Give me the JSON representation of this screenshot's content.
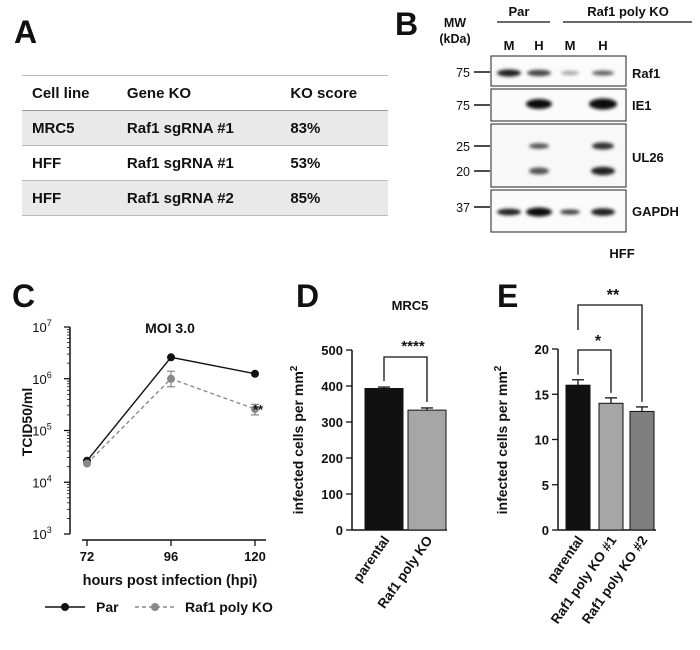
{
  "panels": {
    "a": "A",
    "b": "B",
    "c": "C",
    "d": "D",
    "e": "E"
  },
  "table": {
    "headers": [
      "Cell line",
      "Gene KO",
      "KO score"
    ],
    "rows": [
      [
        "MRC5",
        "Raf1 sgRNA #1",
        "83%"
      ],
      [
        "HFF",
        "Raf1 sgRNA #1",
        "53%"
      ],
      [
        "HFF",
        "Raf1 sgRNA #2",
        "85%"
      ]
    ]
  },
  "blot": {
    "mw_label_1": "MW",
    "mw_label_2": "(kDa)",
    "group_par": "Par",
    "group_ko": "Raf1 poly KO",
    "lanes": [
      "M",
      "H",
      "M",
      "H"
    ],
    "rows": [
      {
        "name": "Raf1",
        "markers": [
          "75"
        ]
      },
      {
        "name": "IE1",
        "markers": [
          "75"
        ]
      },
      {
        "name": "UL26",
        "markers": [
          "25",
          "20"
        ]
      },
      {
        "name": "GAPDH",
        "markers": [
          "37"
        ]
      }
    ]
  },
  "chart_data": [
    {
      "type": "line",
      "title": "MOI 3.0",
      "xlabel": "hours post infection (hpi)",
      "ylabel": "TCID50/ml",
      "yscale": "log",
      "ylim": [
        1000,
        10000000
      ],
      "x": [
        72,
        96,
        120
      ],
      "x_tick_labels": [
        "72",
        "96",
        "120"
      ],
      "y_tick_bases": [
        "10",
        "10",
        "10",
        "10",
        "10"
      ],
      "y_tick_exps": [
        "3",
        "4",
        "5",
        "6",
        "7"
      ],
      "series": [
        {
          "name": "Par",
          "values": [
            26000,
            2600000,
            1250000
          ],
          "errors": [
            0,
            0,
            0
          ],
          "color": "#111111",
          "style": "solid"
        },
        {
          "name": "Raf1 poly KO",
          "values": [
            23000,
            1000000,
            260000
          ],
          "errors": [
            [
              0,
              0
            ],
            [
              700000,
              1400000
            ],
            [
              200000,
              320000
            ]
          ],
          "color": "#888888",
          "style": "dashed"
        }
      ],
      "annotation": "**",
      "legend": [
        "Par",
        "Raf1 poly KO"
      ]
    },
    {
      "type": "bar",
      "title": "MRC5",
      "ylabel_main": "infected cells per mm",
      "ylabel_sup": "2",
      "ylim": [
        0,
        500
      ],
      "y_ticks": [
        "0",
        "100",
        "200",
        "300",
        "400",
        "500"
      ],
      "categories": [
        "parental",
        "Raf1 poly KO"
      ],
      "values": [
        393,
        333
      ],
      "errors": [
        4,
        6
      ],
      "colors": [
        "#111111",
        "#a6a6a6"
      ],
      "significance": "****"
    },
    {
      "type": "bar",
      "title": "HFF",
      "ylabel_main": "infected cells per mm",
      "ylabel_sup": "2",
      "ylim": [
        0,
        20
      ],
      "y_ticks": [
        "0",
        "5",
        "10",
        "15",
        "20"
      ],
      "categories": [
        "parental",
        "Raf1 poly KO #1",
        "Raf1 poly KO #2"
      ],
      "values": [
        16,
        14,
        13.1
      ],
      "errors": [
        0.6,
        0.6,
        0.5
      ],
      "colors": [
        "#111111",
        "#a6a6a6",
        "#7f7f7f"
      ],
      "significance": [
        "*",
        "**"
      ]
    }
  ]
}
